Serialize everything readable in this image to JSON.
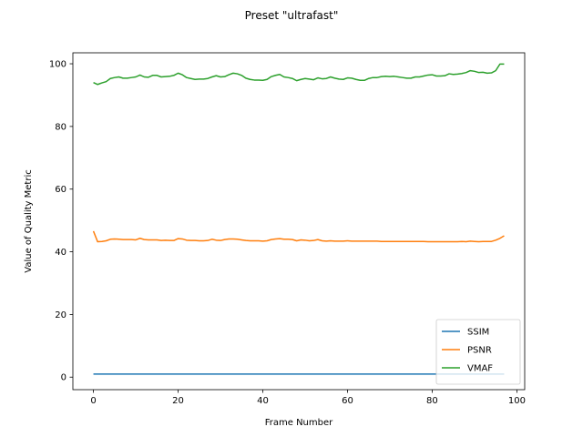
{
  "chart_data": {
    "type": "line",
    "title": "Preset \"ultrafast\"",
    "xlabel": "Frame Number",
    "ylabel": "Value of Quality Metric",
    "xlim": [
      -4.85,
      101.85
    ],
    "ylim": [
      -4.0,
      103.5
    ],
    "xticks": [
      0,
      20,
      40,
      60,
      80,
      100
    ],
    "yticks": [
      0,
      20,
      40,
      60,
      80,
      100
    ],
    "grid": false,
    "legend_position": "lower-right",
    "x": [
      0,
      1,
      2,
      3,
      4,
      5,
      6,
      7,
      8,
      9,
      10,
      11,
      12,
      13,
      14,
      15,
      16,
      17,
      18,
      19,
      20,
      21,
      22,
      23,
      24,
      25,
      26,
      27,
      28,
      29,
      30,
      31,
      32,
      33,
      34,
      35,
      36,
      37,
      38,
      39,
      40,
      41,
      42,
      43,
      44,
      45,
      46,
      47,
      48,
      49,
      50,
      51,
      52,
      53,
      54,
      55,
      56,
      57,
      58,
      59,
      60,
      61,
      62,
      63,
      64,
      65,
      66,
      67,
      68,
      69,
      70,
      71,
      72,
      73,
      74,
      75,
      76,
      77,
      78,
      79,
      80,
      81,
      82,
      83,
      84,
      85,
      86,
      87,
      88,
      89,
      90,
      91,
      92,
      93,
      94,
      95,
      96,
      97
    ],
    "series": [
      {
        "name": "SSIM",
        "color": "#1f77b4",
        "values": [
          0.99,
          0.99,
          0.99,
          0.99,
          0.99,
          0.99,
          0.99,
          0.99,
          0.99,
          0.99,
          0.99,
          0.99,
          0.99,
          0.99,
          0.99,
          0.99,
          0.99,
          0.99,
          0.99,
          0.99,
          0.99,
          0.99,
          0.99,
          0.99,
          0.99,
          0.99,
          0.99,
          0.99,
          0.99,
          0.99,
          0.99,
          0.99,
          0.99,
          0.99,
          0.99,
          0.99,
          0.99,
          0.99,
          0.99,
          0.99,
          0.99,
          0.99,
          0.99,
          0.99,
          0.99,
          0.99,
          0.99,
          0.99,
          0.99,
          0.99,
          0.99,
          0.99,
          0.99,
          0.99,
          0.99,
          0.99,
          0.99,
          0.99,
          0.99,
          0.99,
          0.99,
          0.99,
          0.99,
          0.99,
          0.99,
          0.99,
          0.99,
          0.99,
          0.99,
          0.99,
          0.99,
          0.99,
          0.99,
          0.99,
          0.99,
          0.99,
          0.99,
          0.99,
          0.99,
          0.99,
          0.99,
          0.99,
          0.99,
          0.99,
          0.99,
          0.99,
          0.99,
          0.99,
          0.99,
          0.99,
          0.99,
          0.99,
          0.99,
          0.99,
          0.99,
          0.99,
          0.99,
          0.99
        ]
      },
      {
        "name": "PSNR",
        "color": "#ff7f0e",
        "values": [
          46.6,
          43.2,
          43.3,
          43.5,
          44.0,
          44.1,
          44.0,
          43.9,
          43.9,
          43.9,
          43.8,
          44.3,
          43.9,
          43.8,
          43.8,
          43.8,
          43.6,
          43.7,
          43.6,
          43.6,
          44.2,
          44.1,
          43.7,
          43.6,
          43.6,
          43.5,
          43.5,
          43.6,
          44.0,
          43.7,
          43.6,
          43.9,
          44.1,
          44.1,
          44.0,
          43.8,
          43.6,
          43.5,
          43.5,
          43.5,
          43.4,
          43.5,
          43.9,
          44.1,
          44.2,
          44.0,
          44.0,
          43.9,
          43.5,
          43.8,
          43.7,
          43.5,
          43.6,
          43.9,
          43.5,
          43.4,
          43.5,
          43.4,
          43.4,
          43.4,
          43.5,
          43.4,
          43.4,
          43.4,
          43.4,
          43.4,
          43.4,
          43.4,
          43.3,
          43.3,
          43.3,
          43.3,
          43.3,
          43.3,
          43.3,
          43.3,
          43.3,
          43.3,
          43.3,
          43.2,
          43.2,
          43.2,
          43.2,
          43.2,
          43.2,
          43.2,
          43.2,
          43.3,
          43.2,
          43.4,
          43.3,
          43.2,
          43.3,
          43.3,
          43.3,
          43.7,
          44.3,
          45.1
        ]
      },
      {
        "name": "VMAF",
        "color": "#2ca02c",
        "values": [
          94.0,
          93.4,
          93.9,
          94.3,
          95.3,
          95.6,
          95.8,
          95.4,
          95.4,
          95.6,
          95.8,
          96.4,
          95.8,
          95.7,
          96.3,
          96.3,
          95.8,
          95.9,
          96.0,
          96.3,
          97.0,
          96.5,
          95.6,
          95.3,
          95.0,
          95.1,
          95.1,
          95.3,
          95.8,
          96.2,
          95.8,
          95.9,
          96.5,
          97.0,
          96.8,
          96.3,
          95.4,
          95.0,
          94.8,
          94.8,
          94.7,
          95.0,
          95.9,
          96.3,
          96.6,
          95.8,
          95.6,
          95.3,
          94.6,
          95.0,
          95.3,
          95.1,
          94.9,
          95.5,
          95.2,
          95.3,
          95.8,
          95.4,
          95.1,
          95.0,
          95.5,
          95.4,
          95.0,
          94.7,
          94.7,
          95.3,
          95.6,
          95.6,
          95.9,
          96.0,
          95.9,
          96.0,
          95.8,
          95.6,
          95.4,
          95.4,
          95.8,
          95.8,
          96.1,
          96.4,
          96.5,
          96.1,
          96.1,
          96.2,
          96.8,
          96.6,
          96.7,
          96.9,
          97.2,
          97.8,
          97.6,
          97.2,
          97.3,
          97.0,
          97.1,
          97.8,
          99.9,
          99.9
        ]
      }
    ]
  }
}
